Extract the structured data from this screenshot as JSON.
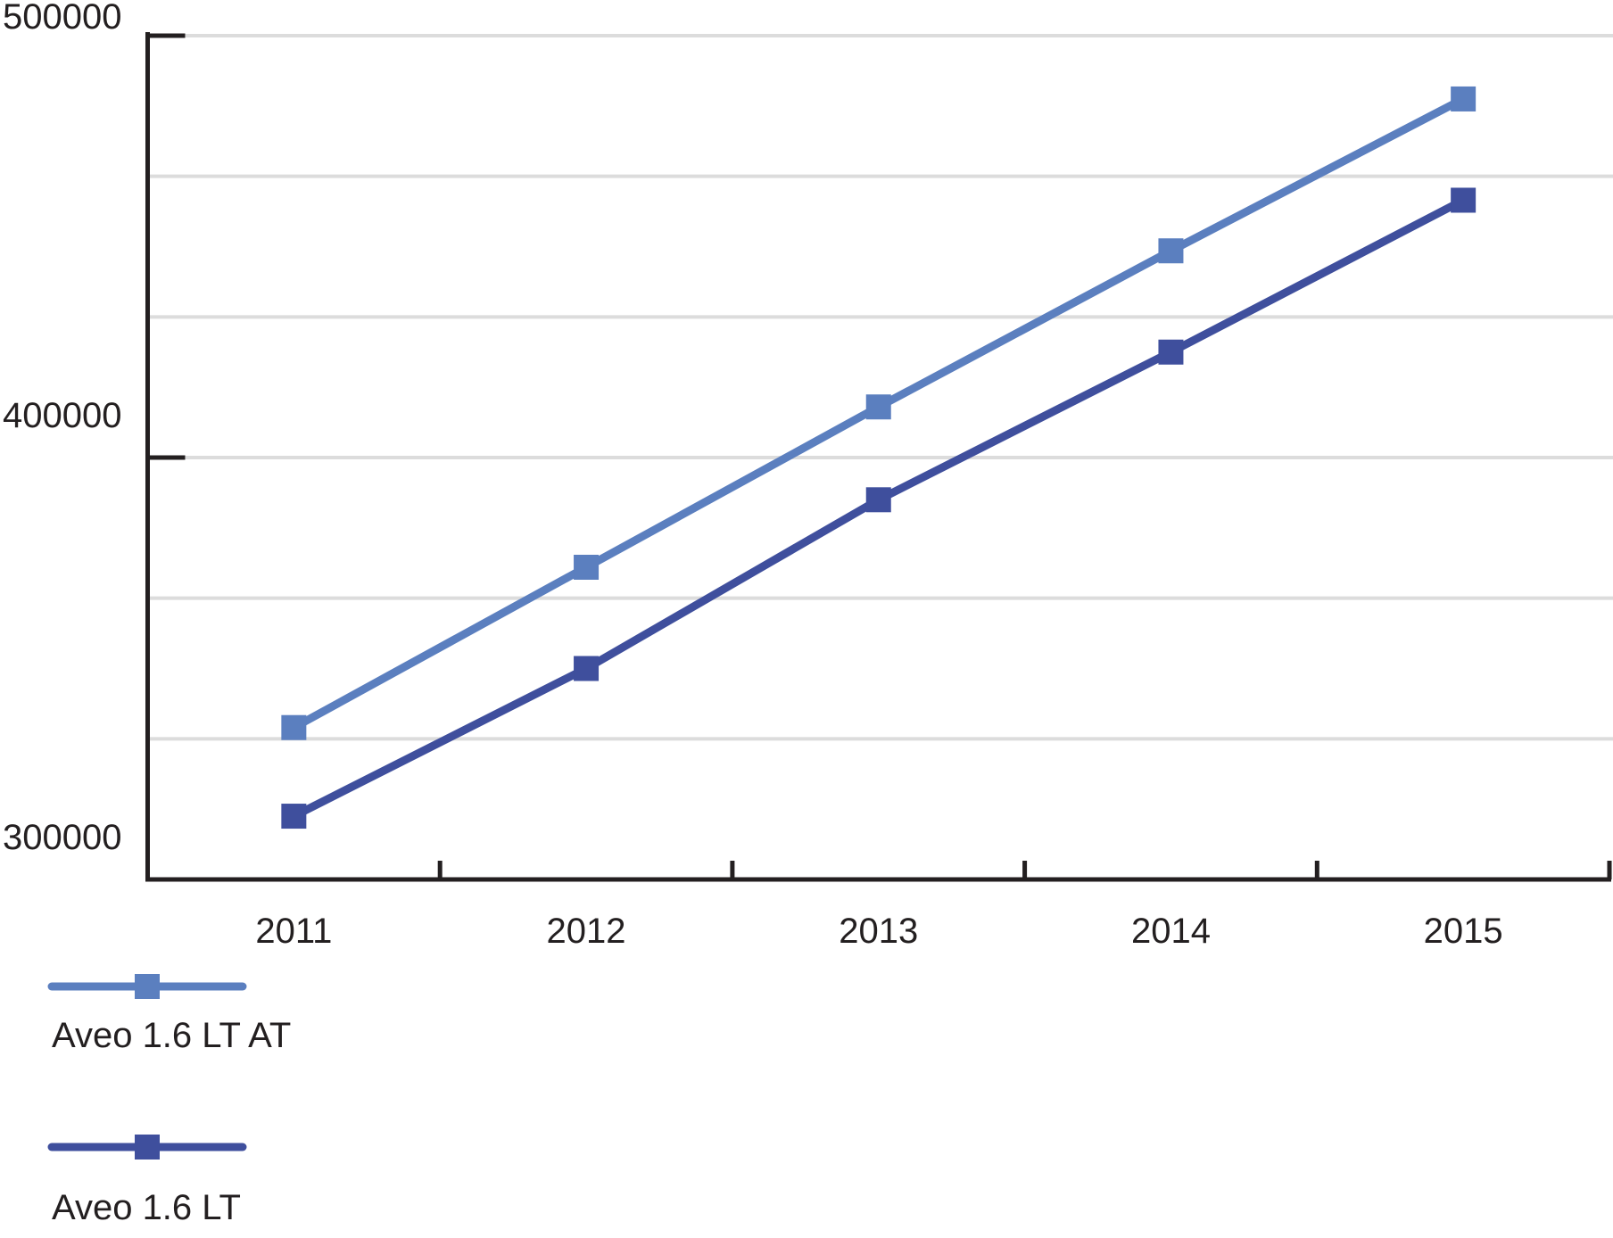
{
  "chart_data": {
    "type": "line",
    "title": "",
    "x_categories": [
      "2011",
      "2012",
      "2013",
      "2014",
      "2015"
    ],
    "series": [
      {
        "name": "Aveo 1.6 LT AT",
        "color": "#5b7fbf",
        "marker": "square",
        "values": [
          336000,
          374000,
          412000,
          449000,
          485000
        ]
      },
      {
        "name": "Aveo 1.6 LT",
        "color": "#3f4f9d",
        "marker": "square",
        "values": [
          315000,
          350000,
          390000,
          425000,
          461000
        ]
      }
    ],
    "ylim": [
      300000,
      500000
    ],
    "y_tick_labels": [
      "500000",
      "400000",
      "300000"
    ],
    "y_tick_values": [
      500000,
      400000,
      300000
    ],
    "gridline_values": [
      500000,
      466667,
      433333,
      400000,
      366667,
      333333
    ],
    "grid": true,
    "legend_position": "bottom-left",
    "colors": {
      "axis": "#231f20",
      "text": "#231f20",
      "gridline": "#dcdcdc",
      "background": "#ffffff"
    }
  }
}
